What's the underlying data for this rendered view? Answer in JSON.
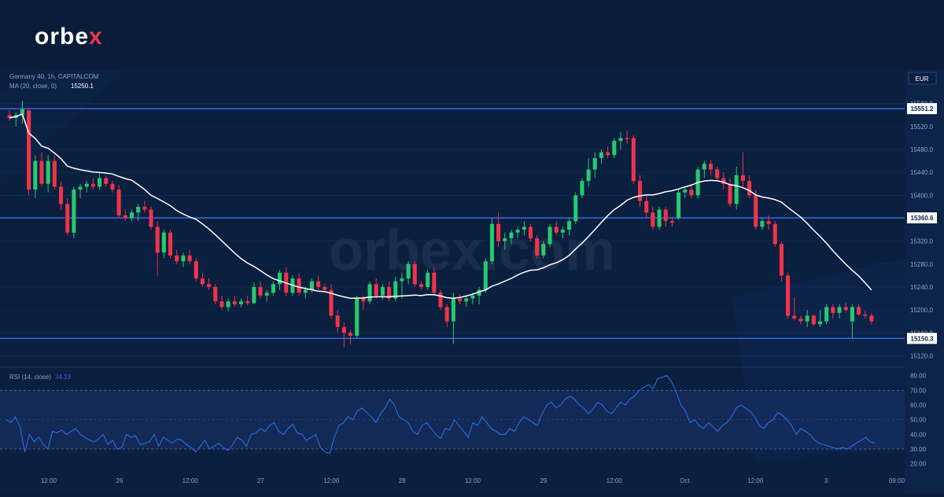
{
  "brand": {
    "name_main": "orbe",
    "name_x": "x"
  },
  "header": {
    "instrument": "Germany 40, 1h, CAPITALCOM",
    "ma_label": "MA (20, close, 0)",
    "ma_value": "15250.1",
    "currency": "EUR"
  },
  "watermark": "orbex.com",
  "colors": {
    "up": "#26c96f",
    "down": "#f0334a",
    "ma": "#ffffff",
    "rsi": "#2d6be6",
    "level": "#3a6ef0",
    "grid": "#16305a"
  },
  "chart_data": [
    {
      "type": "candlestick",
      "ylim": [
        15100,
        15620
      ],
      "y_ticks": [
        15120,
        15160,
        15200,
        15240,
        15280,
        15320,
        15360,
        15400,
        15440,
        15480,
        15520,
        15560
      ],
      "x_tick_labels": [
        "12:00",
        "26",
        "12:00",
        "27",
        "12:00",
        "28",
        "12:00",
        "29",
        "12:00",
        "Oct",
        "12:00",
        "3",
        "09:00"
      ],
      "levels": [
        {
          "label": "15551.2",
          "value": 15551.2
        },
        {
          "label": "15360.6",
          "value": 15360.6
        },
        {
          "label": "15150.3",
          "value": 15150.3
        }
      ],
      "candles": [
        {
          "o": 15540,
          "h": 15548,
          "l": 15530,
          "c": 15535
        },
        {
          "o": 15535,
          "h": 15545,
          "l": 15520,
          "c": 15540
        },
        {
          "o": 15540,
          "h": 15565,
          "l": 15525,
          "c": 15550
        },
        {
          "o": 15548,
          "h": 15552,
          "l": 15400,
          "c": 15410
        },
        {
          "o": 15410,
          "h": 15470,
          "l": 15395,
          "c": 15460
        },
        {
          "o": 15460,
          "h": 15475,
          "l": 15415,
          "c": 15420
        },
        {
          "o": 15420,
          "h": 15470,
          "l": 15405,
          "c": 15460
        },
        {
          "o": 15460,
          "h": 15470,
          "l": 15410,
          "c": 15415
        },
        {
          "o": 15415,
          "h": 15425,
          "l": 15375,
          "c": 15385
        },
        {
          "o": 15385,
          "h": 15395,
          "l": 15330,
          "c": 15335
        },
        {
          "o": 15335,
          "h": 15415,
          "l": 15325,
          "c": 15410
        },
        {
          "o": 15410,
          "h": 15420,
          "l": 15395,
          "c": 15415
        },
        {
          "o": 15415,
          "h": 15425,
          "l": 15405,
          "c": 15420
        },
        {
          "o": 15420,
          "h": 15430,
          "l": 15410,
          "c": 15415
        },
        {
          "o": 15415,
          "h": 15440,
          "l": 15410,
          "c": 15430
        },
        {
          "o": 15430,
          "h": 15435,
          "l": 15415,
          "c": 15420
        },
        {
          "o": 15420,
          "h": 15425,
          "l": 15405,
          "c": 15410
        },
        {
          "o": 15410,
          "h": 15418,
          "l": 15360,
          "c": 15365
        },
        {
          "o": 15365,
          "h": 15375,
          "l": 15355,
          "c": 15360
        },
        {
          "o": 15360,
          "h": 15375,
          "l": 15355,
          "c": 15370
        },
        {
          "o": 15370,
          "h": 15385,
          "l": 15355,
          "c": 15380
        },
        {
          "o": 15380,
          "h": 15390,
          "l": 15370,
          "c": 15375
        },
        {
          "o": 15375,
          "h": 15380,
          "l": 15340,
          "c": 15345
        },
        {
          "o": 15345,
          "h": 15355,
          "l": 15260,
          "c": 15300
        },
        {
          "o": 15300,
          "h": 15340,
          "l": 15290,
          "c": 15335
        },
        {
          "o": 15335,
          "h": 15340,
          "l": 15290,
          "c": 15295
        },
        {
          "o": 15295,
          "h": 15305,
          "l": 15280,
          "c": 15285
        },
        {
          "o": 15285,
          "h": 15300,
          "l": 15275,
          "c": 15295
        },
        {
          "o": 15295,
          "h": 15305,
          "l": 15280,
          "c": 15285
        },
        {
          "o": 15285,
          "h": 15290,
          "l": 15250,
          "c": 15255
        },
        {
          "o": 15255,
          "h": 15265,
          "l": 15240,
          "c": 15245
        },
        {
          "o": 15245,
          "h": 15255,
          "l": 15235,
          "c": 15240
        },
        {
          "o": 15240,
          "h": 15245,
          "l": 15210,
          "c": 15215
        },
        {
          "o": 15215,
          "h": 15225,
          "l": 15200,
          "c": 15205
        },
        {
          "o": 15205,
          "h": 15220,
          "l": 15198,
          "c": 15215
        },
        {
          "o": 15215,
          "h": 15225,
          "l": 15205,
          "c": 15210
        },
        {
          "o": 15210,
          "h": 15220,
          "l": 15205,
          "c": 15215
        },
        {
          "o": 15215,
          "h": 15225,
          "l": 15208,
          "c": 15212
        },
        {
          "o": 15212,
          "h": 15248,
          "l": 15210,
          "c": 15240
        },
        {
          "o": 15240,
          "h": 15250,
          "l": 15220,
          "c": 15225
        },
        {
          "o": 15225,
          "h": 15235,
          "l": 15215,
          "c": 15230
        },
        {
          "o": 15230,
          "h": 15250,
          "l": 15225,
          "c": 15245
        },
        {
          "o": 15245,
          "h": 15270,
          "l": 15235,
          "c": 15265
        },
        {
          "o": 15265,
          "h": 15275,
          "l": 15225,
          "c": 15230
        },
        {
          "o": 15230,
          "h": 15260,
          "l": 15225,
          "c": 15255
        },
        {
          "o": 15255,
          "h": 15265,
          "l": 15225,
          "c": 15230
        },
        {
          "o": 15230,
          "h": 15240,
          "l": 15220,
          "c": 15235
        },
        {
          "o": 15235,
          "h": 15255,
          "l": 15230,
          "c": 15250
        },
        {
          "o": 15250,
          "h": 15260,
          "l": 15235,
          "c": 15240
        },
        {
          "o": 15240,
          "h": 15245,
          "l": 15230,
          "c": 15235
        },
        {
          "o": 15235,
          "h": 15245,
          "l": 15185,
          "c": 15190
        },
        {
          "o": 15190,
          "h": 15200,
          "l": 15160,
          "c": 15170
        },
        {
          "o": 15170,
          "h": 15178,
          "l": 15135,
          "c": 15160
        },
        {
          "o": 15160,
          "h": 15165,
          "l": 15140,
          "c": 15155
        },
        {
          "o": 15155,
          "h": 15225,
          "l": 15150,
          "c": 15220
        },
        {
          "o": 15220,
          "h": 15225,
          "l": 15200,
          "c": 15215
        },
        {
          "o": 15215,
          "h": 15250,
          "l": 15210,
          "c": 15245
        },
        {
          "o": 15245,
          "h": 15255,
          "l": 15220,
          "c": 15225
        },
        {
          "o": 15225,
          "h": 15245,
          "l": 15218,
          "c": 15240
        },
        {
          "o": 15240,
          "h": 15250,
          "l": 15215,
          "c": 15220
        },
        {
          "o": 15220,
          "h": 15258,
          "l": 15215,
          "c": 15250
        },
        {
          "o": 15250,
          "h": 15265,
          "l": 15220,
          "c": 15255
        },
        {
          "o": 15255,
          "h": 15285,
          "l": 15245,
          "c": 15280
        },
        {
          "o": 15280,
          "h": 15285,
          "l": 15240,
          "c": 15245
        },
        {
          "o": 15245,
          "h": 15250,
          "l": 15235,
          "c": 15240
        },
        {
          "o": 15240,
          "h": 15270,
          "l": 15235,
          "c": 15265
        },
        {
          "o": 15265,
          "h": 15275,
          "l": 15225,
          "c": 15230
        },
        {
          "o": 15230,
          "h": 15235,
          "l": 15200,
          "c": 15205
        },
        {
          "o": 15205,
          "h": 15210,
          "l": 15170,
          "c": 15180
        },
        {
          "o": 15180,
          "h": 15230,
          "l": 15140,
          "c": 15220
        },
        {
          "o": 15220,
          "h": 15228,
          "l": 15210,
          "c": 15215
        },
        {
          "o": 15215,
          "h": 15225,
          "l": 15205,
          "c": 15220
        },
        {
          "o": 15220,
          "h": 15230,
          "l": 15210,
          "c": 15225
        },
        {
          "o": 15225,
          "h": 15240,
          "l": 15210,
          "c": 15235
        },
        {
          "o": 15235,
          "h": 15290,
          "l": 15230,
          "c": 15285
        },
        {
          "o": 15285,
          "h": 15360,
          "l": 15280,
          "c": 15350
        },
        {
          "o": 15350,
          "h": 15370,
          "l": 15310,
          "c": 15320
        },
        {
          "o": 15320,
          "h": 15335,
          "l": 15305,
          "c": 15325
        },
        {
          "o": 15325,
          "h": 15340,
          "l": 15315,
          "c": 15335
        },
        {
          "o": 15335,
          "h": 15345,
          "l": 15325,
          "c": 15340
        },
        {
          "o": 15340,
          "h": 15355,
          "l": 15330,
          "c": 15345
        },
        {
          "o": 15345,
          "h": 15350,
          "l": 15320,
          "c": 15325
        },
        {
          "o": 15325,
          "h": 15330,
          "l": 15290,
          "c": 15295
        },
        {
          "o": 15295,
          "h": 15320,
          "l": 15290,
          "c": 15315
        },
        {
          "o": 15315,
          "h": 15350,
          "l": 15310,
          "c": 15345
        },
        {
          "o": 15345,
          "h": 15355,
          "l": 15330,
          "c": 15335
        },
        {
          "o": 15335,
          "h": 15345,
          "l": 15325,
          "c": 15340
        },
        {
          "o": 15340,
          "h": 15360,
          "l": 15330,
          "c": 15355
        },
        {
          "o": 15355,
          "h": 15405,
          "l": 15350,
          "c": 15400
        },
        {
          "o": 15400,
          "h": 15430,
          "l": 15395,
          "c": 15425
        },
        {
          "o": 15425,
          "h": 15465,
          "l": 15415,
          "c": 15445
        },
        {
          "o": 15445,
          "h": 15475,
          "l": 15430,
          "c": 15465
        },
        {
          "o": 15465,
          "h": 15480,
          "l": 15455,
          "c": 15475
        },
        {
          "o": 15475,
          "h": 15485,
          "l": 15465,
          "c": 15470
        },
        {
          "o": 15470,
          "h": 15500,
          "l": 15465,
          "c": 15495
        },
        {
          "o": 15495,
          "h": 15510,
          "l": 15480,
          "c": 15500
        },
        {
          "o": 15500,
          "h": 15512,
          "l": 15490,
          "c": 15498
        },
        {
          "o": 15500,
          "h": 15505,
          "l": 15420,
          "c": 15425
        },
        {
          "o": 15425,
          "h": 15435,
          "l": 15380,
          "c": 15390
        },
        {
          "o": 15390,
          "h": 15400,
          "l": 15360,
          "c": 15370
        },
        {
          "o": 15370,
          "h": 15380,
          "l": 15340,
          "c": 15345
        },
        {
          "o": 15345,
          "h": 15380,
          "l": 15340,
          "c": 15375
        },
        {
          "o": 15375,
          "h": 15380,
          "l": 15345,
          "c": 15355
        },
        {
          "o": 15355,
          "h": 15362,
          "l": 15345,
          "c": 15352
        },
        {
          "o": 15360,
          "h": 15410,
          "l": 15358,
          "c": 15405
        },
        {
          "o": 15405,
          "h": 15415,
          "l": 15395,
          "c": 15410
        },
        {
          "o": 15410,
          "h": 15420,
          "l": 15395,
          "c": 15400
        },
        {
          "o": 15400,
          "h": 15450,
          "l": 15395,
          "c": 15445
        },
        {
          "o": 15445,
          "h": 15460,
          "l": 15430,
          "c": 15455
        },
        {
          "o": 15455,
          "h": 15462,
          "l": 15435,
          "c": 15445
        },
        {
          "o": 15445,
          "h": 15450,
          "l": 15425,
          "c": 15430
        },
        {
          "o": 15430,
          "h": 15440,
          "l": 15410,
          "c": 15420
        },
        {
          "o": 15420,
          "h": 15430,
          "l": 15380,
          "c": 15385
        },
        {
          "o": 15385,
          "h": 15450,
          "l": 15375,
          "c": 15435
        },
        {
          "o": 15435,
          "h": 15475,
          "l": 15415,
          "c": 15425
        },
        {
          "o": 15425,
          "h": 15435,
          "l": 15395,
          "c": 15400
        },
        {
          "o": 15400,
          "h": 15410,
          "l": 15340,
          "c": 15345
        },
        {
          "o": 15345,
          "h": 15360,
          "l": 15340,
          "c": 15355
        },
        {
          "o": 15355,
          "h": 15365,
          "l": 15340,
          "c": 15350
        },
        {
          "o": 15350,
          "h": 15355,
          "l": 15310,
          "c": 15315
        },
        {
          "o": 15315,
          "h": 15320,
          "l": 15250,
          "c": 15260
        },
        {
          "o": 15260,
          "h": 15265,
          "l": 15185,
          "c": 15190
        },
        {
          "o": 15190,
          "h": 15222,
          "l": 15182,
          "c": 15185
        },
        {
          "o": 15185,
          "h": 15190,
          "l": 15175,
          "c": 15180
        },
        {
          "o": 15180,
          "h": 15200,
          "l": 15170,
          "c": 15190
        },
        {
          "o": 15190,
          "h": 15192,
          "l": 15172,
          "c": 15175
        },
        {
          "o": 15175,
          "h": 15200,
          "l": 15170,
          "c": 15180
        },
        {
          "o": 15180,
          "h": 15210,
          "l": 15175,
          "c": 15205
        },
        {
          "o": 15205,
          "h": 15210,
          "l": 15185,
          "c": 15195
        },
        {
          "o": 15195,
          "h": 15210,
          "l": 15185,
          "c": 15205
        },
        {
          "o": 15205,
          "h": 15212,
          "l": 15195,
          "c": 15200
        },
        {
          "o": 15180,
          "h": 15210,
          "l": 15150,
          "c": 15205
        },
        {
          "o": 15205,
          "h": 15210,
          "l": 15190,
          "c": 15192
        },
        {
          "o": 15192,
          "h": 15198,
          "l": 15185,
          "c": 15190
        },
        {
          "o": 15190,
          "h": 15195,
          "l": 15175,
          "c": 15180
        }
      ]
    },
    {
      "type": "line",
      "title": "RSI (14, close)",
      "current": "34.13",
      "ylim": [
        15,
        82
      ],
      "y_ticks": [
        20,
        30,
        40,
        50,
        60,
        70,
        80
      ],
      "bands": [
        30,
        70
      ],
      "values": [
        50,
        48,
        52,
        45,
        28,
        40,
        35,
        38,
        33,
        30,
        42,
        41,
        43,
        40,
        42,
        44,
        40,
        38,
        36,
        35,
        37,
        40,
        33,
        36,
        30,
        31,
        40,
        38,
        39,
        33,
        34,
        35,
        40,
        32,
        38,
        36,
        34,
        37,
        36,
        33,
        31,
        28,
        32,
        36,
        30,
        32,
        34,
        31,
        29,
        33,
        38,
        36,
        32,
        40,
        41,
        44,
        42,
        46,
        48,
        42,
        40,
        44,
        47,
        41,
        40,
        36,
        38,
        40,
        31,
        28,
        27,
        38,
        46,
        48,
        52,
        50,
        56,
        58,
        55,
        52,
        48,
        54,
        58,
        64,
        60,
        52,
        50,
        48,
        42,
        40,
        46,
        48,
        44,
        40,
        37,
        44,
        43,
        50,
        46,
        42,
        38,
        48,
        46,
        52,
        48,
        44,
        42,
        40,
        40,
        44,
        42,
        48,
        52,
        50,
        48,
        46,
        54,
        60,
        62,
        58,
        60,
        64,
        66,
        64,
        60,
        58,
        54,
        57,
        62,
        60,
        56,
        54,
        58,
        62,
        60,
        64,
        66,
        70,
        72,
        74,
        71,
        78,
        79,
        80,
        76,
        69,
        60,
        56,
        48,
        50,
        46,
        44,
        48,
        45,
        42,
        46,
        48,
        52,
        58,
        60,
        58,
        56,
        52,
        46,
        44,
        48,
        50,
        55,
        53,
        50,
        46,
        40,
        44,
        42,
        40,
        36,
        34,
        33,
        32,
        31,
        30,
        31,
        30,
        32,
        34,
        36,
        38,
        35,
        34
      ]
    }
  ]
}
